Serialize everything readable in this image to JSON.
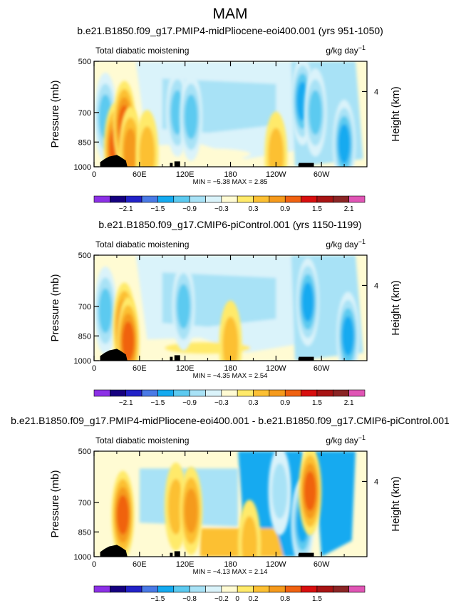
{
  "figure": {
    "suptitle": "MAM"
  },
  "colors": [
    "#8c30e6",
    "#160080",
    "#2222c8",
    "#4a7ae6",
    "#14aaf0",
    "#5ccaf0",
    "#a8e2f6",
    "#daf3fa",
    "#fffbd3",
    "#ffea6a",
    "#fcc033",
    "#f59a1c",
    "#f06211",
    "#d80f0f",
    "#a81414",
    "#8b2525",
    "#e055b5"
  ],
  "panels": [
    {
      "title": "b.e21.B1850.f09_g17.PMIP4-midPliocene-eoi400.001 (yrs 951-1050)",
      "left_label": "Total diabatic moistening",
      "right_label": "g/kg day",
      "right_label_exp": "−1",
      "min_text": "MIN =   −5.38   MAX =   2.85",
      "colorbar_labels": [
        "−2.1",
        "−1.5",
        "−0.9",
        "−0.3",
        "0.3",
        "0.9",
        "1.5",
        "2.1"
      ]
    },
    {
      "title": "b.e21.B1850.f09_g17.CMIP6-piControl.001 (yrs 1150-1199)",
      "left_label": "Total diabatic moistening",
      "right_label": "g/kg day",
      "right_label_exp": "−1",
      "min_text": "MIN =   −4.35   MAX =   2.54",
      "colorbar_labels": [
        "−2.1",
        "−1.5",
        "−0.9",
        "−0.3",
        "0.3",
        "0.9",
        "1.5",
        "2.1"
      ]
    },
    {
      "title": "b.e21.B1850.f09_g17.PMIP4-midPliocene-eoi400.001 - b.e21.B1850.f09_g17.CMIP6-piControl.001",
      "left_label": "Total diabatic moistening",
      "right_label": "g/kg day",
      "right_label_exp": "−1",
      "min_text": "MIN =   −4.13   MAX =   2.14",
      "colorbar_labels": [
        "−1.5",
        "−0.8",
        "−0.2",
        "0",
        "0.2",
        "0.8",
        "1.5"
      ]
    }
  ],
  "chart_data": [
    {
      "type": "heatmap",
      "title": "b.e21.B1850.f09_g17.PMIP4-midPliocene-eoi400.001 (yrs 951-1050)",
      "xlabel": "",
      "ylabel": "Pressure (mb)",
      "y2label": "Height (km)",
      "x_ticks": [
        "0",
        "60E",
        "120E",
        "180",
        "120W",
        "60W"
      ],
      "y_ticks": [
        "500",
        "700",
        "850",
        "1000"
      ],
      "y2_ticks": [
        "4"
      ],
      "xlim": [
        0,
        360
      ],
      "ylim": [
        1000,
        500
      ],
      "levels": [
        -2.1,
        -1.5,
        -0.9,
        -0.3,
        0.3,
        0.9,
        1.5,
        2.1
      ],
      "min": -5.38,
      "max": 2.85,
      "features": [
        {
          "lon": 15,
          "p": 720,
          "value": -1.5
        },
        {
          "lon": 28,
          "p": 880,
          "value": 1.8
        },
        {
          "lon": 40,
          "p": 760,
          "value": 2.1
        },
        {
          "lon": 48,
          "p": 900,
          "value": 1.5
        },
        {
          "lon": 110,
          "p": 700,
          "value": -1.6
        },
        {
          "lon": 128,
          "p": 720,
          "value": -1.5
        },
        {
          "lon": 275,
          "p": 650,
          "value": -2.1
        },
        {
          "lon": 292,
          "p": 700,
          "value": -1.5
        },
        {
          "lon": 330,
          "p": 860,
          "value": -2.1
        },
        {
          "lon": 70,
          "p": 920,
          "value": 0.5
        },
        {
          "lon": 240,
          "p": 930,
          "value": 0.4
        }
      ]
    },
    {
      "type": "heatmap",
      "title": "b.e21.B1850.f09_g17.CMIP6-piControl.001 (yrs 1150-1199)",
      "xlabel": "",
      "ylabel": "Pressure (mb)",
      "y2label": "Height (km)",
      "x_ticks": [
        "0",
        "60E",
        "120E",
        "180",
        "120W",
        "60W"
      ],
      "y_ticks": [
        "500",
        "700",
        "850",
        "1000"
      ],
      "y2_ticks": [
        "4"
      ],
      "xlim": [
        0,
        360
      ],
      "ylim": [
        1000,
        500
      ],
      "levels": [
        -2.1,
        -1.5,
        -0.9,
        -0.3,
        0.3,
        0.9,
        1.5,
        2.1
      ],
      "min": -4.35,
      "max": 2.54,
      "features": [
        {
          "lon": 15,
          "p": 720,
          "value": -1.5
        },
        {
          "lon": 40,
          "p": 800,
          "value": 2.0
        },
        {
          "lon": 45,
          "p": 880,
          "value": 1.8
        },
        {
          "lon": 118,
          "p": 700,
          "value": -1.5
        },
        {
          "lon": 180,
          "p": 900,
          "value": 0.8
        },
        {
          "lon": 282,
          "p": 680,
          "value": -2.1
        },
        {
          "lon": 335,
          "p": 850,
          "value": -2.1
        }
      ]
    },
    {
      "type": "heatmap",
      "title": "b.e21.B1850.f09_g17.PMIP4-midPliocene-eoi400.001 - b.e21.B1850.f09_g17.CMIP6-piControl.001",
      "xlabel": "",
      "ylabel": "Pressure (mb)",
      "y2label": "Height (km)",
      "x_ticks": [
        "0",
        "60E",
        "120E",
        "180",
        "120W",
        "60W"
      ],
      "y_ticks": [
        "500",
        "700",
        "850",
        "1000"
      ],
      "y2_ticks": [
        "4"
      ],
      "xlim": [
        0,
        360
      ],
      "ylim": [
        1000,
        500
      ],
      "levels": [
        -1.5,
        -0.8,
        -0.2,
        0,
        0.2,
        0.8,
        1.5
      ],
      "min": -4.13,
      "max": 2.14,
      "features": [
        {
          "lon": 38,
          "p": 760,
          "value": 1.5
        },
        {
          "lon": 108,
          "p": 720,
          "value": 0.8
        },
        {
          "lon": 128,
          "p": 740,
          "value": 1.0
        },
        {
          "lon": 275,
          "p": 800,
          "value": -1.5
        },
        {
          "lon": 285,
          "p": 650,
          "value": 1.5
        },
        {
          "lon": 245,
          "p": 650,
          "value": -0.5
        },
        {
          "lon": 205,
          "p": 920,
          "value": 0.6
        }
      ]
    }
  ]
}
